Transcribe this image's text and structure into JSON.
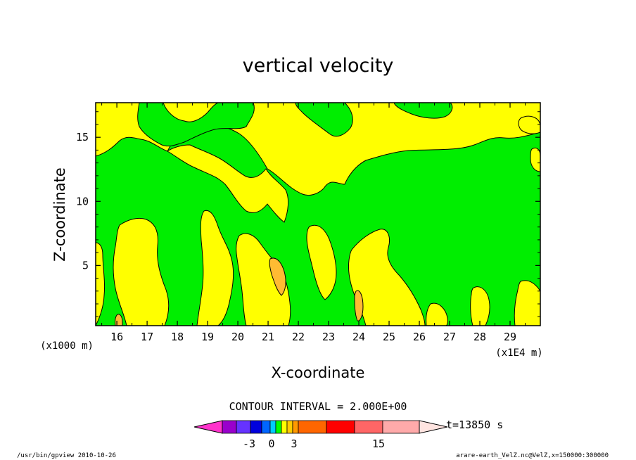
{
  "chart_data": {
    "type": "heatmap",
    "title": "vertical velocity",
    "xlabel": "X-coordinate",
    "ylabel": "Z-coordinate",
    "x_unit_left": "(x1000 m)",
    "x_unit_right": "(x1E4 m)",
    "xlim": [
      15.3,
      30.0
    ],
    "ylim": [
      0.3,
      17.7
    ],
    "x_ticks": [
      "16",
      "17",
      "18",
      "19",
      "20",
      "21",
      "22",
      "23",
      "24",
      "25",
      "26",
      "27",
      "28",
      "29"
    ],
    "y_ticks": [
      "5",
      "10",
      "15"
    ],
    "contour_interval_text": "CONTOUR INTERVAL = 2.000E+00",
    "time_text": "t=13850 s",
    "colorbar_labels": [
      "-3",
      "0",
      "3",
      "15"
    ],
    "colorbar_colors": [
      "#ff33cc",
      "#9900cc",
      "#6633ff",
      "#0000dd",
      "#0066ff",
      "#00ccff",
      "#00ff00",
      "#ffff00",
      "#ffcc00",
      "#ff9900",
      "#ff6600",
      "#ff0000",
      "#ff6666",
      "#ffaaaa",
      "#ffcccc",
      "#ffe4e0"
    ],
    "field_colors": {
      "negative_weak": "#00ee00",
      "positive_weak": "#ffff00",
      "positive_medium": "#ffbb33"
    },
    "footer_left": "/usr/bin/gpview   2010-10-26",
    "footer_right": "arare-earth_VelZ.nc@VelZ,x=150000:300000"
  }
}
